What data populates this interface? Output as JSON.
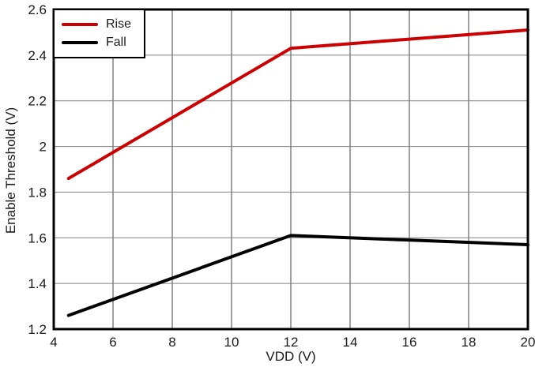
{
  "chart_data": {
    "type": "line",
    "title": "",
    "xlabel": "VDD (V)",
    "ylabel": "Enable Threshold (V)",
    "xlim": [
      4,
      20
    ],
    "ylim": [
      1.2,
      2.6
    ],
    "x_ticks": [
      4,
      6,
      8,
      10,
      12,
      14,
      16,
      18,
      20
    ],
    "y_ticks": [
      1.2,
      1.4,
      1.6,
      1.8,
      2,
      2.2,
      2.4,
      2.6
    ],
    "grid": true,
    "legend_position": "top-left",
    "series": [
      {
        "name": "Rise",
        "color": "#cc0000",
        "x": [
          4.5,
          12,
          20
        ],
        "y": [
          1.86,
          2.43,
          2.51
        ]
      },
      {
        "name": "Fall",
        "color": "#000000",
        "x": [
          4.5,
          12,
          20
        ],
        "y": [
          1.26,
          1.61,
          1.57
        ]
      }
    ]
  },
  "colors": {
    "grid_vertical": "#404040",
    "grid_horizontal": "#808080",
    "frame": "#000000",
    "tick_text": "#1a1a1a",
    "background": "#ffffff"
  }
}
